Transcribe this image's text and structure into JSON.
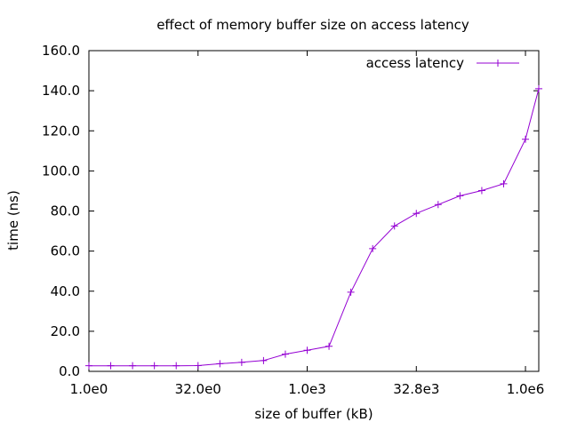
{
  "chart_data": {
    "type": "line",
    "title": "effect of memory buffer size on access latency",
    "xlabel": "size of buffer (kB)",
    "ylabel": "time (ns)",
    "x_scale": "log2",
    "xlim": [
      1,
      1600000
    ],
    "ylim": [
      0,
      160
    ],
    "x_ticks": [
      {
        "value": 1,
        "label": "1.0e0"
      },
      {
        "value": 32,
        "label": "32.0e0"
      },
      {
        "value": 1024,
        "label": "1.0e3"
      },
      {
        "value": 32768,
        "label": "32.8e3"
      },
      {
        "value": 1048576,
        "label": "1.0e6"
      }
    ],
    "y_ticks": [
      {
        "value": 0,
        "label": "0.0"
      },
      {
        "value": 20,
        "label": "20.0"
      },
      {
        "value": 40,
        "label": "40.0"
      },
      {
        "value": 60,
        "label": "60.0"
      },
      {
        "value": 80,
        "label": "80.0"
      },
      {
        "value": 100,
        "label": "100.0"
      },
      {
        "value": 120,
        "label": "120.0"
      },
      {
        "value": 140,
        "label": "140.0"
      },
      {
        "value": 160,
        "label": "160.0"
      }
    ],
    "grid": false,
    "legend_position": "top-right",
    "series": [
      {
        "name": "access latency",
        "color": "#9400d3",
        "points": [
          {
            "x": 1,
            "y": 2.8
          },
          {
            "x": 2,
            "y": 2.8
          },
          {
            "x": 4,
            "y": 2.8
          },
          {
            "x": 8,
            "y": 2.8
          },
          {
            "x": 16,
            "y": 2.8
          },
          {
            "x": 32,
            "y": 2.9
          },
          {
            "x": 64,
            "y": 3.8
          },
          {
            "x": 128,
            "y": 4.5
          },
          {
            "x": 256,
            "y": 5.4
          },
          {
            "x": 512,
            "y": 8.6
          },
          {
            "x": 1024,
            "y": 10.5
          },
          {
            "x": 2048,
            "y": 12.5
          },
          {
            "x": 4096,
            "y": 39.5
          },
          {
            "x": 8192,
            "y": 61.2
          },
          {
            "x": 16384,
            "y": 72.5
          },
          {
            "x": 32768,
            "y": 78.8
          },
          {
            "x": 65536,
            "y": 83.2
          },
          {
            "x": 131072,
            "y": 87.6
          },
          {
            "x": 262144,
            "y": 90.2
          },
          {
            "x": 524288,
            "y": 93.6
          },
          {
            "x": 1048576,
            "y": 115.8
          },
          {
            "x": 2097152,
            "y": 141.0
          }
        ]
      }
    ]
  }
}
